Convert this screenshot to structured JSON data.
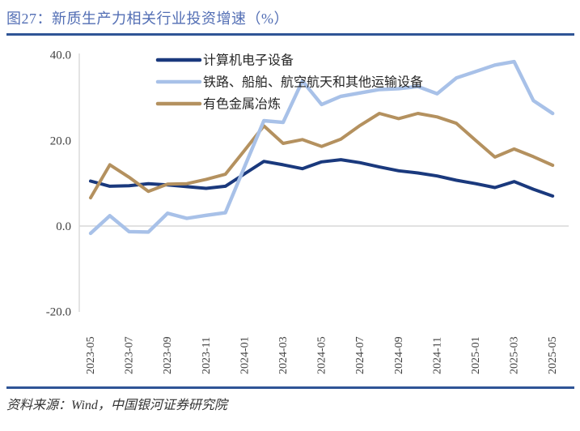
{
  "title": "图27：新质生产力相关行业投资增速（%）",
  "source": "资料来源：Wind，中国银河证券研究院",
  "colors": {
    "title_text": "#526EB4",
    "rule": "#2F5496",
    "axis_gray": "#D9D9D9",
    "tick_text": "#404040",
    "legend_text": "#262626",
    "series_computer": "#1A397D",
    "series_rail": "#A8C1E8",
    "series_nonferrous": "#B4915F"
  },
  "chart_data": {
    "type": "line",
    "title": "新质生产力相关行业投资增速（%）",
    "x": [
      "2023-05",
      "2023-06",
      "2023-07",
      "2023-08",
      "2023-09",
      "2023-10",
      "2023-11",
      "2023-12",
      "2024-01",
      "2024-02",
      "2024-03",
      "2024-04",
      "2024-05",
      "2024-06",
      "2024-07",
      "2024-08",
      "2024-09",
      "2024-10",
      "2024-11",
      "2024-12",
      "2025-01",
      "2025-02",
      "2025-03",
      "2025-04",
      "2025-05"
    ],
    "series": [
      {
        "key": "computer-electronics",
        "name": "计算机电子设备",
        "color": "#1A397D",
        "values": [
          10.5,
          9.3,
          9.4,
          9.9,
          9.6,
          9.2,
          8.8,
          9.3,
          12.2,
          15.1,
          14.3,
          13.4,
          15.0,
          15.5,
          14.8,
          13.8,
          12.9,
          12.4,
          11.7,
          10.7,
          9.9,
          9.0,
          10.4,
          8.6,
          7.0
        ]
      },
      {
        "key": "rail-ship-aero-transport",
        "name": "铁路、船舶、航空航天和其他运输设备",
        "color": "#A8C1E8",
        "values": [
          -1.7,
          2.4,
          -1.3,
          -1.4,
          3.0,
          1.8,
          2.5,
          3.1,
          13.9,
          24.6,
          24.2,
          33.9,
          28.4,
          30.3,
          31.1,
          31.9,
          32.1,
          32.6,
          30.9,
          34.6,
          36.1,
          37.6,
          38.4,
          29.3,
          26.3
        ]
      },
      {
        "key": "nonferrous-smelting",
        "name": "有色金属冶炼",
        "color": "#B4915F",
        "values": [
          6.6,
          14.3,
          11.4,
          8.1,
          9.8,
          9.9,
          10.9,
          12.1,
          17.7,
          23.4,
          19.3,
          20.2,
          18.6,
          20.3,
          23.5,
          26.3,
          25.1,
          26.3,
          25.5,
          24.0,
          20.0,
          16.1,
          18.0,
          16.2,
          14.2
        ]
      }
    ],
    "x_tick_labels": [
      "2023-05",
      "2023-07",
      "2023-09",
      "2023-11",
      "2024-01",
      "2024-03",
      "2024-05",
      "2024-07",
      "2024-09",
      "2024-11",
      "2025-01",
      "2025-03",
      "2025-05"
    ],
    "y_ticks": [
      {
        "value": 40,
        "label": "40.0"
      },
      {
        "value": 20,
        "label": "20.0"
      },
      {
        "value": 0,
        "label": "0.0"
      },
      {
        "value": -20,
        "label": "-20.0"
      }
    ],
    "ylim": [
      -20,
      40
    ],
    "grid": "zero-line-only",
    "legend_position": "top-inside"
  }
}
